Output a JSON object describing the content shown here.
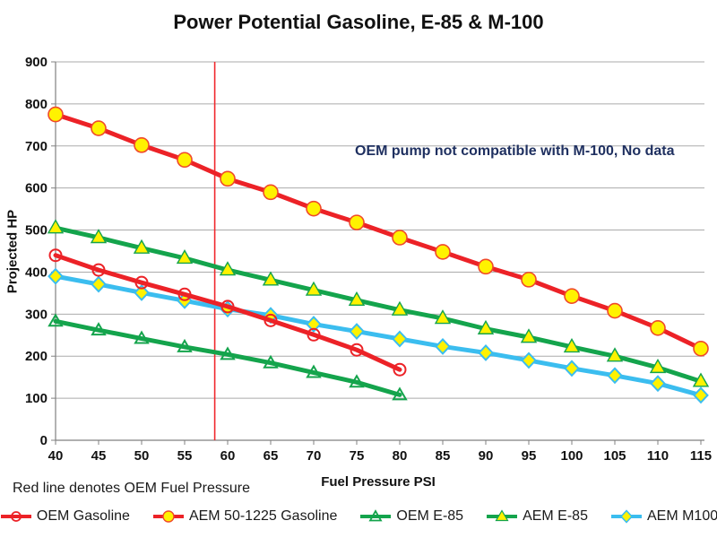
{
  "chart_data": {
    "type": "line",
    "title": "Power Potential Gasoline, E-85 & M-100",
    "xlabel": "Fuel Pressure PSI",
    "ylabel": "Projected HP",
    "annotation": "OEM pump not compatible with M-100, No data",
    "footnote": "Red line denotes OEM Fuel Pressure",
    "xlim": [
      40,
      115
    ],
    "ylim": [
      0,
      900
    ],
    "x_tick_step": 5,
    "y_tick_step": 100,
    "x_ticks": [
      40,
      45,
      50,
      55,
      60,
      65,
      70,
      75,
      80,
      85,
      90,
      95,
      100,
      105,
      110,
      115
    ],
    "y_ticks": [
      0,
      100,
      200,
      300,
      400,
      500,
      600,
      700,
      800,
      900
    ],
    "grid": "horizontal",
    "legend_position": "bottom",
    "colors": {
      "red": "#EC2227",
      "green": "#14A44C",
      "cyan": "#3BBDEF",
      "marker_yellow": "#FFF200",
      "gridline": "#ABABAB",
      "axis": "#808080",
      "vline_red": "#F0282D"
    },
    "vline": {
      "x": 58.5,
      "label": "OEM Fuel Pressure",
      "color": "#F0282D"
    },
    "series": [
      {
        "name": "OEM Gasoline",
        "color": "#EC2227",
        "marker": "open-circle",
        "marker_fill": "none",
        "marker_stroke": "#EC2227",
        "x": [
          40,
          45,
          50,
          55,
          60,
          65,
          70,
          75,
          80
        ],
        "values": [
          440,
          405,
          375,
          347,
          318,
          285,
          251,
          215,
          168
        ]
      },
      {
        "name": "AEM 50-1225 Gasoline",
        "color": "#EC2227",
        "marker": "filled-circle",
        "marker_fill": "#FFF200",
        "marker_stroke": "#F0492A",
        "x": [
          40,
          45,
          50,
          55,
          60,
          65,
          70,
          75,
          80,
          85,
          90,
          95,
          100,
          105,
          110,
          115
        ],
        "values": [
          775,
          742,
          702,
          667,
          622,
          590,
          551,
          518,
          482,
          448,
          413,
          382,
          343,
          308,
          267,
          218
        ]
      },
      {
        "name": "OEM E-85",
        "color": "#14A44C",
        "marker": "open-triangle",
        "marker_fill": "none",
        "marker_stroke": "#14A44C",
        "x": [
          40,
          45,
          50,
          55,
          60,
          65,
          70,
          75,
          80
        ],
        "values": [
          283,
          262,
          242,
          222,
          204,
          184,
          161,
          138,
          108
        ]
      },
      {
        "name": "AEM E-85",
        "color": "#14A44C",
        "marker": "filled-triangle",
        "marker_fill": "#FFF200",
        "marker_stroke": "#14A44C",
        "x": [
          40,
          45,
          50,
          55,
          60,
          65,
          70,
          75,
          80,
          85,
          90,
          95,
          100,
          105,
          110,
          115
        ],
        "values": [
          505,
          482,
          457,
          433,
          405,
          381,
          357,
          333,
          310,
          290,
          265,
          245,
          222,
          200,
          173,
          140
        ]
      },
      {
        "name": "AEM M100",
        "color": "#3BBDEF",
        "marker": "filled-diamond",
        "marker_fill": "#FFF200",
        "marker_stroke": "#3BBDEF",
        "x": [
          40,
          45,
          50,
          55,
          60,
          65,
          70,
          75,
          80,
          85,
          90,
          95,
          100,
          105,
          110,
          115
        ],
        "values": [
          390,
          371,
          351,
          332,
          312,
          297,
          276,
          259,
          241,
          223,
          208,
          190,
          171,
          154,
          135,
          107
        ]
      }
    ]
  }
}
